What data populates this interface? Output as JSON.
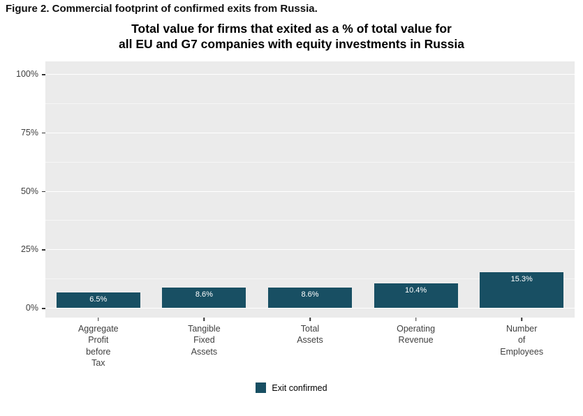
{
  "figure_caption": "Figure 2. Commercial footprint of confirmed exits from Russia.",
  "chart_data": {
    "type": "bar",
    "title": "Total value for firms that exited as a % of total value for\nall EU and G7 companies with equity investments in Russia",
    "categories": [
      "Aggregate\nProfit\nbefore\nTax",
      "Tangible\nFixed\nAssets",
      "Total\nAssets",
      "Operating\nRevenue",
      "Number\nof\nEmployees"
    ],
    "values": [
      6.5,
      8.6,
      8.6,
      10.4,
      15.3
    ],
    "value_labels": [
      "6.5%",
      "8.6%",
      "8.6%",
      "10.4%",
      "15.3%"
    ],
    "xlabel": "",
    "ylabel": "",
    "ylim": [
      0,
      100
    ],
    "yticks": [
      "0%",
      "25%",
      "50%",
      "75%",
      "100%"
    ],
    "ytick_values": [
      0,
      25,
      50,
      75,
      100
    ],
    "grid": true,
    "bar_color": "#184f63",
    "panel_background": "#ebebeb",
    "legend": {
      "position": "bottom",
      "entries": [
        {
          "label": "Exit confirmed",
          "color": "#184f63"
        }
      ]
    }
  }
}
